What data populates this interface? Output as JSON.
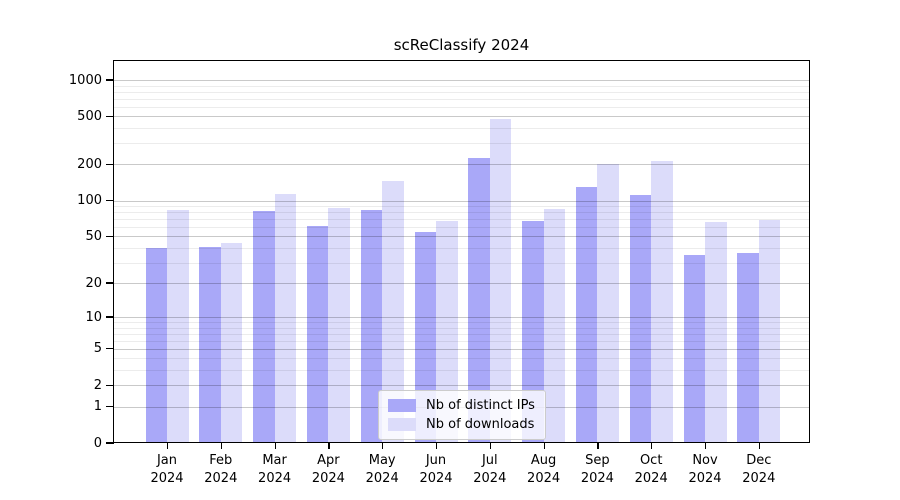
{
  "chart_data": {
    "type": "bar",
    "title": "scReClassify 2024",
    "months": [
      "Jan",
      "Feb",
      "Mar",
      "Apr",
      "May",
      "Jun",
      "Jul",
      "Aug",
      "Sep",
      "Oct",
      "Nov",
      "Dec"
    ],
    "year": "2024",
    "series": [
      {
        "name": "Nb of distinct IPs",
        "color": "#a9a8f8",
        "values": [
          40,
          41,
          82,
          61,
          83,
          54,
          225,
          67,
          129,
          112,
          35,
          36
        ]
      },
      {
        "name": "Nb of downloads",
        "color": "#dcdcfa",
        "values": [
          83,
          44,
          113,
          87,
          146,
          67,
          475,
          85,
          200,
          212,
          66,
          69
        ]
      }
    ],
    "y_axis": {
      "scale": "log10(1+v)",
      "tick_values": [
        1000,
        500,
        200,
        100,
        50,
        20,
        10,
        5,
        2,
        1,
        0
      ],
      "ylim": [
        0,
        1460
      ]
    },
    "grid": {
      "orientation": "horizontal",
      "minor_color": "#ebebeb",
      "major_color": "#c9c9c9"
    },
    "legend_position": "bottom-center-inside"
  }
}
